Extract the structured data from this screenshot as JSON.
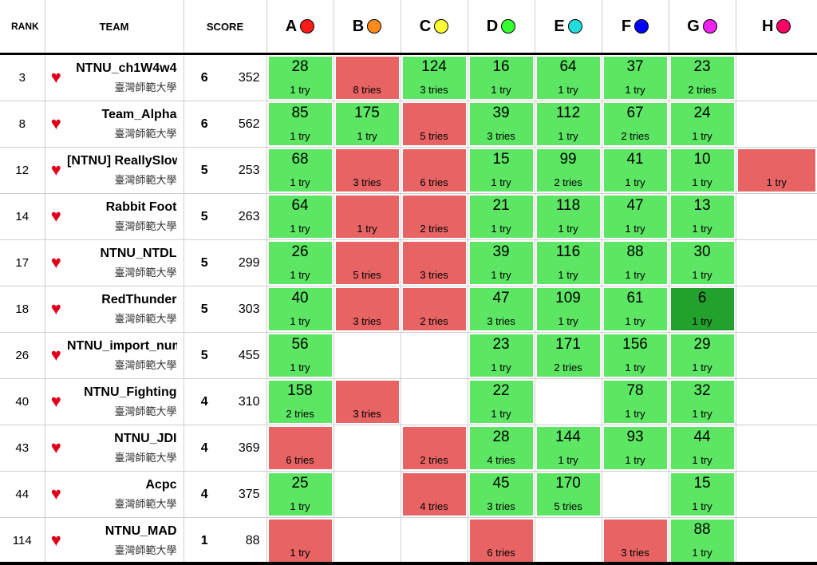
{
  "header": {
    "rank": "RANK",
    "team": "TEAM",
    "score": "SCORE",
    "problems": [
      {
        "label": "A",
        "color": "#ff1a1a"
      },
      {
        "label": "B",
        "color": "#ff8c1a"
      },
      {
        "label": "C",
        "color": "#ffff33"
      },
      {
        "label": "D",
        "color": "#33ff33"
      },
      {
        "label": "E",
        "color": "#22dddd"
      },
      {
        "label": "F",
        "color": "#0000ff"
      },
      {
        "label": "G",
        "color": "#ee22ee"
      },
      {
        "label": "H",
        "color": "#ff0066"
      }
    ]
  },
  "rows": [
    {
      "rank": "3",
      "name": "NTNU_ch1W4w4",
      "aff": "臺灣師範大學",
      "solved": "6",
      "score": "352",
      "cells": [
        {
          "s": "solved",
          "t": "28",
          "n": "1 try"
        },
        {
          "s": "failed",
          "t": "",
          "n": "8 tries"
        },
        {
          "s": "solved",
          "t": "124",
          "n": "3 tries"
        },
        {
          "s": "solved",
          "t": "16",
          "n": "1 try"
        },
        {
          "s": "solved",
          "t": "64",
          "n": "1 try"
        },
        {
          "s": "solved",
          "t": "37",
          "n": "1 try"
        },
        {
          "s": "solved",
          "t": "23",
          "n": "2 tries"
        },
        {
          "s": "empty",
          "t": "",
          "n": ""
        }
      ]
    },
    {
      "rank": "8",
      "name": "Team_Alpha",
      "aff": "臺灣師範大學",
      "solved": "6",
      "score": "562",
      "cells": [
        {
          "s": "solved",
          "t": "85",
          "n": "1 try"
        },
        {
          "s": "solved",
          "t": "175",
          "n": "1 try"
        },
        {
          "s": "failed",
          "t": "",
          "n": "5 tries"
        },
        {
          "s": "solved",
          "t": "39",
          "n": "3 tries"
        },
        {
          "s": "solved",
          "t": "112",
          "n": "1 try"
        },
        {
          "s": "solved",
          "t": "67",
          "n": "2 tries"
        },
        {
          "s": "solved",
          "t": "24",
          "n": "1 try"
        },
        {
          "s": "empty",
          "t": "",
          "n": ""
        }
      ]
    },
    {
      "rank": "12",
      "name": "[NTNU] ReallySlow",
      "aff": "臺灣師範大學",
      "solved": "5",
      "score": "253",
      "cells": [
        {
          "s": "solved",
          "t": "68",
          "n": "1 try"
        },
        {
          "s": "failed",
          "t": "",
          "n": "3 tries"
        },
        {
          "s": "failed",
          "t": "",
          "n": "6 tries"
        },
        {
          "s": "solved",
          "t": "15",
          "n": "1 try"
        },
        {
          "s": "solved",
          "t": "99",
          "n": "2 tries"
        },
        {
          "s": "solved",
          "t": "41",
          "n": "1 try"
        },
        {
          "s": "solved",
          "t": "10",
          "n": "1 try"
        },
        {
          "s": "failed",
          "t": "",
          "n": "1 try"
        }
      ]
    },
    {
      "rank": "14",
      "name": "Rabbit Foot",
      "aff": "臺灣師範大學",
      "solved": "5",
      "score": "263",
      "cells": [
        {
          "s": "solved",
          "t": "64",
          "n": "1 try"
        },
        {
          "s": "failed",
          "t": "",
          "n": "1 try"
        },
        {
          "s": "failed",
          "t": "",
          "n": "2 tries"
        },
        {
          "s": "solved",
          "t": "21",
          "n": "1 try"
        },
        {
          "s": "solved",
          "t": "118",
          "n": "1 try"
        },
        {
          "s": "solved",
          "t": "47",
          "n": "1 try"
        },
        {
          "s": "solved",
          "t": "13",
          "n": "1 try"
        },
        {
          "s": "empty",
          "t": "",
          "n": ""
        }
      ]
    },
    {
      "rank": "17",
      "name": "NTNU_NTDL",
      "aff": "臺灣師範大學",
      "solved": "5",
      "score": "299",
      "cells": [
        {
          "s": "solved",
          "t": "26",
          "n": "1 try"
        },
        {
          "s": "failed",
          "t": "",
          "n": "5 tries"
        },
        {
          "s": "failed",
          "t": "",
          "n": "3 tries"
        },
        {
          "s": "solved",
          "t": "39",
          "n": "1 try"
        },
        {
          "s": "solved",
          "t": "116",
          "n": "1 try"
        },
        {
          "s": "solved",
          "t": "88",
          "n": "1 try"
        },
        {
          "s": "solved",
          "t": "30",
          "n": "1 try"
        },
        {
          "s": "empty",
          "t": "",
          "n": ""
        }
      ]
    },
    {
      "rank": "18",
      "name": "RedThunder",
      "aff": "臺灣師範大學",
      "solved": "5",
      "score": "303",
      "cells": [
        {
          "s": "solved",
          "t": "40",
          "n": "1 try"
        },
        {
          "s": "failed",
          "t": "",
          "n": "3 tries"
        },
        {
          "s": "failed",
          "t": "",
          "n": "2 tries"
        },
        {
          "s": "solved",
          "t": "47",
          "n": "3 tries"
        },
        {
          "s": "solved",
          "t": "109",
          "n": "1 try"
        },
        {
          "s": "solved",
          "t": "61",
          "n": "1 try"
        },
        {
          "s": "first",
          "t": "6",
          "n": "1 try"
        },
        {
          "s": "empty",
          "t": "",
          "n": ""
        }
      ]
    },
    {
      "rank": "26",
      "name": "NTNU_import_numpy",
      "aff": "臺灣師範大學",
      "solved": "5",
      "score": "455",
      "cells": [
        {
          "s": "solved",
          "t": "56",
          "n": "1 try"
        },
        {
          "s": "empty",
          "t": "",
          "n": ""
        },
        {
          "s": "empty",
          "t": "",
          "n": ""
        },
        {
          "s": "solved",
          "t": "23",
          "n": "1 try"
        },
        {
          "s": "solved",
          "t": "171",
          "n": "2 tries"
        },
        {
          "s": "solved",
          "t": "156",
          "n": "1 try"
        },
        {
          "s": "solved",
          "t": "29",
          "n": "1 try"
        },
        {
          "s": "empty",
          "t": "",
          "n": ""
        }
      ]
    },
    {
      "rank": "40",
      "name": "NTNU_Fighting",
      "aff": "臺灣師範大學",
      "solved": "4",
      "score": "310",
      "cells": [
        {
          "s": "solved",
          "t": "158",
          "n": "2 tries"
        },
        {
          "s": "failed",
          "t": "",
          "n": "3 tries"
        },
        {
          "s": "empty",
          "t": "",
          "n": ""
        },
        {
          "s": "solved",
          "t": "22",
          "n": "1 try"
        },
        {
          "s": "empty",
          "t": "",
          "n": ""
        },
        {
          "s": "solved",
          "t": "78",
          "n": "1 try"
        },
        {
          "s": "solved",
          "t": "32",
          "n": "1 try"
        },
        {
          "s": "empty",
          "t": "",
          "n": ""
        }
      ]
    },
    {
      "rank": "43",
      "name": "NTNU_JDI",
      "aff": "臺灣師範大學",
      "solved": "4",
      "score": "369",
      "cells": [
        {
          "s": "failed",
          "t": "",
          "n": "6 tries"
        },
        {
          "s": "empty",
          "t": "",
          "n": ""
        },
        {
          "s": "failed",
          "t": "",
          "n": "2 tries"
        },
        {
          "s": "solved",
          "t": "28",
          "n": "4 tries"
        },
        {
          "s": "solved",
          "t": "144",
          "n": "1 try"
        },
        {
          "s": "solved",
          "t": "93",
          "n": "1 try"
        },
        {
          "s": "solved",
          "t": "44",
          "n": "1 try"
        },
        {
          "s": "empty",
          "t": "",
          "n": ""
        }
      ]
    },
    {
      "rank": "44",
      "name": "Acpc",
      "aff": "臺灣師範大學",
      "solved": "4",
      "score": "375",
      "cells": [
        {
          "s": "solved",
          "t": "25",
          "n": "1 try"
        },
        {
          "s": "empty",
          "t": "",
          "n": ""
        },
        {
          "s": "failed",
          "t": "",
          "n": "4 tries"
        },
        {
          "s": "solved",
          "t": "45",
          "n": "3 tries"
        },
        {
          "s": "solved",
          "t": "170",
          "n": "5 tries"
        },
        {
          "s": "empty",
          "t": "",
          "n": ""
        },
        {
          "s": "solved",
          "t": "15",
          "n": "1 try"
        },
        {
          "s": "empty",
          "t": "",
          "n": ""
        }
      ]
    },
    {
      "rank": "114",
      "name": "NTNU_MAD",
      "aff": "臺灣師範大學",
      "solved": "1",
      "score": "88",
      "cells": [
        {
          "s": "failed",
          "t": "",
          "n": "1 try"
        },
        {
          "s": "empty",
          "t": "",
          "n": ""
        },
        {
          "s": "empty",
          "t": "",
          "n": ""
        },
        {
          "s": "failed",
          "t": "",
          "n": "6 tries"
        },
        {
          "s": "empty",
          "t": "",
          "n": ""
        },
        {
          "s": "failed",
          "t": "",
          "n": "3 tries"
        },
        {
          "s": "solved",
          "t": "88",
          "n": "1 try"
        },
        {
          "s": "empty",
          "t": "",
          "n": ""
        }
      ]
    }
  ]
}
